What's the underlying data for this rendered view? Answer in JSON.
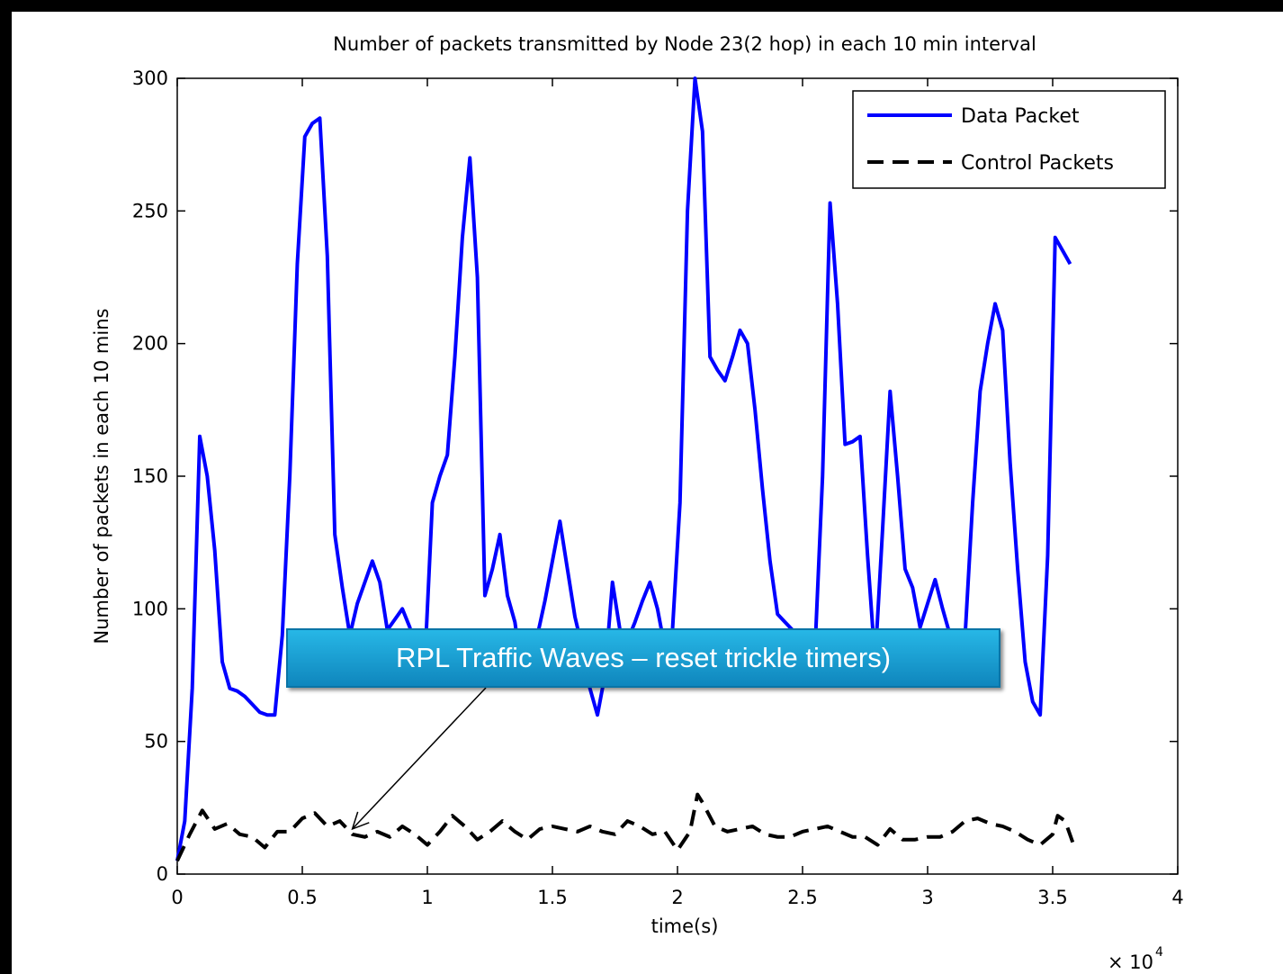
{
  "chart_data": {
    "type": "line",
    "title": "Number of packets transmitted by Node 23(2 hop) in each 10 min interval",
    "xlabel": "time(s)",
    "ylabel": "Number of packets in each 10 mins",
    "x_multiplier": "× 10",
    "x_multiplier_exponent": "4",
    "xlim": [
      0,
      4
    ],
    "ylim": [
      0,
      300
    ],
    "xticks": [
      "0",
      "0.5",
      "1",
      "1.5",
      "2",
      "2.5",
      "3",
      "3.5",
      "4"
    ],
    "yticks": [
      "0",
      "50",
      "100",
      "150",
      "200",
      "250",
      "300"
    ],
    "legend_position": "top-right",
    "series": [
      {
        "name": "Data Packet",
        "color": "#0000ff",
        "dash": "solid",
        "x": [
          0,
          0.03,
          0.06,
          0.09,
          0.12,
          0.15,
          0.18,
          0.21,
          0.24,
          0.27,
          0.3,
          0.33,
          0.36,
          0.39,
          0.42,
          0.45,
          0.48,
          0.51,
          0.54,
          0.57,
          0.6,
          0.63,
          0.66,
          0.69,
          0.72,
          0.75,
          0.78,
          0.81,
          0.84,
          0.87,
          0.9,
          0.93,
          0.96,
          0.99,
          1.02,
          1.05,
          1.08,
          1.11,
          1.14,
          1.17,
          1.2,
          1.23,
          1.26,
          1.29,
          1.32,
          1.35,
          1.38,
          1.41,
          1.44,
          1.47,
          1.5,
          1.53,
          1.56,
          1.59,
          1.62,
          1.65,
          1.68,
          1.71,
          1.74,
          1.77,
          1.8,
          1.83,
          1.86,
          1.89,
          1.92,
          1.95,
          1.98,
          2.01,
          2.04,
          2.07,
          2.1,
          2.13,
          2.16,
          2.19,
          2.22,
          2.25,
          2.28,
          2.31,
          2.34,
          2.37,
          2.4,
          2.43,
          2.46,
          2.49,
          2.52,
          2.55,
          2.58,
          2.61,
          2.64,
          2.67,
          2.7,
          2.73,
          2.76,
          2.79,
          2.82,
          2.85,
          2.88,
          2.91,
          2.94,
          2.97,
          3.0,
          3.03,
          3.06,
          3.09,
          3.12,
          3.15,
          3.18,
          3.21,
          3.24,
          3.27,
          3.3,
          3.33,
          3.36,
          3.39,
          3.42,
          3.45,
          3.48,
          3.51,
          3.54,
          3.57
        ],
        "y": [
          5,
          20,
          70,
          165,
          150,
          122,
          80,
          70,
          69,
          67,
          64,
          61,
          60,
          60,
          90,
          150,
          230,
          278,
          283,
          285,
          233,
          128,
          108,
          90,
          102,
          110,
          118,
          110,
          92,
          96,
          100,
          93,
          78,
          80,
          140,
          150,
          158,
          195,
          240,
          270,
          225,
          105,
          115,
          128,
          105,
          95,
          75,
          78,
          90,
          103,
          118,
          133,
          115,
          97,
          85,
          70,
          60,
          75,
          110,
          92,
          88,
          95,
          103,
          110,
          100,
          85,
          92,
          140,
          250,
          300,
          280,
          195,
          190,
          186,
          195,
          205,
          200,
          175,
          145,
          118,
          98,
          95,
          92,
          88,
          85,
          85,
          150,
          253,
          215,
          162,
          163,
          165,
          120,
          80,
          130,
          182,
          150,
          115,
          108,
          93,
          102,
          111,
          100,
          90,
          80,
          90,
          140,
          182,
          200,
          215,
          205,
          155,
          115,
          80,
          65,
          60,
          120,
          240,
          235,
          230
        ]
      },
      {
        "name": "Control Packets",
        "color": "#000000",
        "dash": "dashed",
        "x": [
          0,
          0.05,
          0.1,
          0.15,
          0.2,
          0.25,
          0.3,
          0.35,
          0.4,
          0.45,
          0.5,
          0.55,
          0.6,
          0.65,
          0.7,
          0.75,
          0.8,
          0.85,
          0.9,
          0.95,
          1.0,
          1.05,
          1.1,
          1.15,
          1.2,
          1.25,
          1.3,
          1.35,
          1.4,
          1.45,
          1.5,
          1.55,
          1.6,
          1.65,
          1.7,
          1.75,
          1.8,
          1.85,
          1.9,
          1.95,
          2.0,
          2.05,
          2.08,
          2.1,
          2.15,
          2.2,
          2.25,
          2.3,
          2.35,
          2.4,
          2.45,
          2.5,
          2.55,
          2.6,
          2.65,
          2.7,
          2.75,
          2.8,
          2.85,
          2.9,
          2.95,
          3.0,
          3.05,
          3.1,
          3.15,
          3.2,
          3.25,
          3.3,
          3.35,
          3.4,
          3.45,
          3.5,
          3.52,
          3.55,
          3.58
        ],
        "y": [
          5,
          15,
          24,
          17,
          19,
          15,
          14,
          10,
          16,
          16,
          21,
          23,
          18,
          20,
          15,
          14,
          16,
          14,
          18,
          15,
          11,
          16,
          22,
          18,
          13,
          16,
          20,
          16,
          13,
          17,
          18,
          17,
          16,
          18,
          16,
          15,
          20,
          18,
          15,
          16,
          9,
          16,
          30,
          27,
          18,
          16,
          17,
          18,
          15,
          14,
          14,
          16,
          17,
          18,
          16,
          14,
          14,
          11,
          17,
          13,
          13,
          14,
          14,
          16,
          20,
          21,
          19,
          18,
          16,
          13,
          11,
          15,
          22,
          20,
          12
        ]
      }
    ],
    "annotation": {
      "text": "RPL Traffic Waves – reset trickle timers)",
      "arrow_target": [
        0.7,
        17
      ]
    }
  }
}
